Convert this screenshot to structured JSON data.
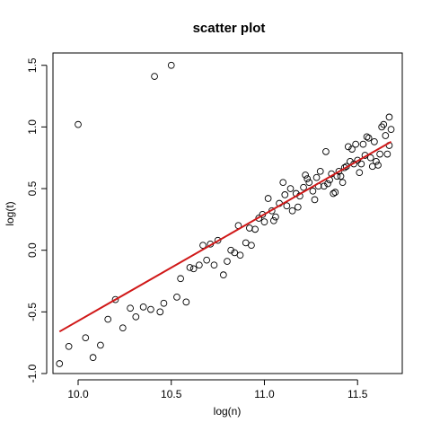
{
  "chart_data": {
    "type": "scatter",
    "title": "scatter plot",
    "xlabel": "log(n)",
    "ylabel": "log(t)",
    "xlim": [
      9.865,
      11.74
    ],
    "ylim": [
      -1.0,
      1.6
    ],
    "x_ticks": [
      10.0,
      10.5,
      11.0,
      11.5
    ],
    "x_tick_labels": [
      "10.0",
      "10.5",
      "11.0",
      "11.5"
    ],
    "y_ticks": [
      -1.0,
      -0.5,
      0.0,
      0.5,
      1.0,
      1.5
    ],
    "y_tick_labels": [
      "-1.0",
      "-0.5",
      "0.0",
      "0.5",
      "1.0",
      "1.5"
    ],
    "grid": false,
    "colors": {
      "points": "#000000",
      "fit_line": "#d01818"
    },
    "fit_line": {
      "x": [
        9.9,
        11.68
      ],
      "y": [
        -0.66,
        0.88
      ]
    },
    "points": [
      [
        9.9,
        -0.92
      ],
      [
        9.95,
        -0.78
      ],
      [
        10.0,
        1.02
      ],
      [
        10.04,
        -0.71
      ],
      [
        10.08,
        -0.87
      ],
      [
        10.12,
        -0.77
      ],
      [
        10.16,
        -0.56
      ],
      [
        10.2,
        -0.4
      ],
      [
        10.24,
        -0.63
      ],
      [
        10.28,
        -0.47
      ],
      [
        10.31,
        -0.54
      ],
      [
        10.35,
        -0.46
      ],
      [
        10.39,
        -0.48
      ],
      [
        10.41,
        1.41
      ],
      [
        10.44,
        -0.5
      ],
      [
        10.46,
        -0.43
      ],
      [
        10.5,
        1.5
      ],
      [
        10.53,
        -0.38
      ],
      [
        10.55,
        -0.23
      ],
      [
        10.58,
        -0.42
      ],
      [
        10.6,
        -0.14
      ],
      [
        10.62,
        -0.15
      ],
      [
        10.65,
        -0.12
      ],
      [
        10.67,
        0.04
      ],
      [
        10.69,
        -0.08
      ],
      [
        10.71,
        0.05
      ],
      [
        10.73,
        -0.12
      ],
      [
        10.75,
        0.08
      ],
      [
        10.78,
        -0.2
      ],
      [
        10.8,
        -0.09
      ],
      [
        10.82,
        0.0
      ],
      [
        10.84,
        -0.02
      ],
      [
        10.86,
        0.2
      ],
      [
        10.87,
        -0.04
      ],
      [
        10.9,
        0.06
      ],
      [
        10.92,
        0.18
      ],
      [
        10.93,
        0.04
      ],
      [
        10.95,
        0.17
      ],
      [
        10.97,
        0.26
      ],
      [
        10.99,
        0.29
      ],
      [
        11.0,
        0.23
      ],
      [
        11.02,
        0.42
      ],
      [
        11.04,
        0.32
      ],
      [
        11.05,
        0.24
      ],
      [
        11.06,
        0.27
      ],
      [
        11.08,
        0.38
      ],
      [
        11.1,
        0.55
      ],
      [
        11.11,
        0.45
      ],
      [
        11.12,
        0.36
      ],
      [
        11.14,
        0.5
      ],
      [
        11.15,
        0.32
      ],
      [
        11.17,
        0.46
      ],
      [
        11.18,
        0.35
      ],
      [
        11.19,
        0.44
      ],
      [
        11.21,
        0.51
      ],
      [
        11.22,
        0.61
      ],
      [
        11.23,
        0.58
      ],
      [
        11.24,
        0.55
      ],
      [
        11.26,
        0.48
      ],
      [
        11.27,
        0.41
      ],
      [
        11.28,
        0.59
      ],
      [
        11.29,
        0.52
      ],
      [
        11.3,
        0.64
      ],
      [
        11.32,
        0.52
      ],
      [
        11.33,
        0.8
      ],
      [
        11.34,
        0.54
      ],
      [
        11.35,
        0.57
      ],
      [
        11.36,
        0.62
      ],
      [
        11.37,
        0.46
      ],
      [
        11.38,
        0.47
      ],
      [
        11.39,
        0.6
      ],
      [
        11.4,
        0.64
      ],
      [
        11.41,
        0.6
      ],
      [
        11.42,
        0.55
      ],
      [
        11.43,
        0.67
      ],
      [
        11.44,
        0.68
      ],
      [
        11.45,
        0.84
      ],
      [
        11.46,
        0.72
      ],
      [
        11.47,
        0.82
      ],
      [
        11.48,
        0.7
      ],
      [
        11.49,
        0.86
      ],
      [
        11.5,
        0.73
      ],
      [
        11.51,
        0.63
      ],
      [
        11.52,
        0.7
      ],
      [
        11.53,
        0.86
      ],
      [
        11.54,
        0.77
      ],
      [
        11.55,
        0.92
      ],
      [
        11.56,
        0.91
      ],
      [
        11.57,
        0.75
      ],
      [
        11.58,
        0.68
      ],
      [
        11.59,
        0.88
      ],
      [
        11.6,
        0.72
      ],
      [
        11.61,
        0.69
      ],
      [
        11.62,
        0.78
      ],
      [
        11.63,
        1.0
      ],
      [
        11.64,
        1.02
      ],
      [
        11.65,
        0.93
      ],
      [
        11.66,
        0.78
      ],
      [
        11.67,
        0.85
      ],
      [
        11.67,
        1.08
      ],
      [
        11.68,
        0.98
      ]
    ]
  }
}
